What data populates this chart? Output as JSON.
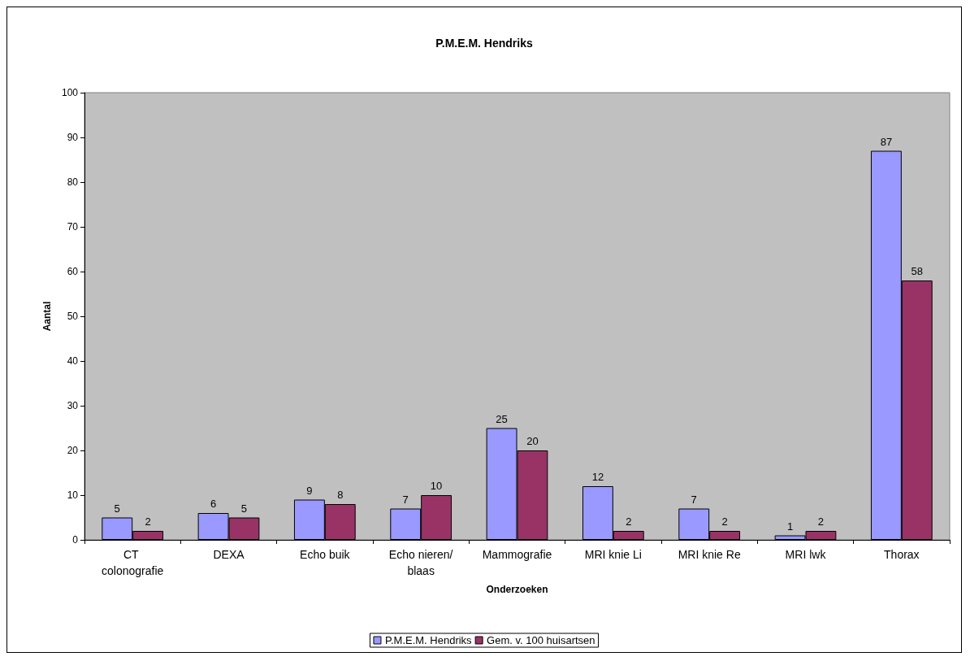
{
  "chart_data": {
    "type": "bar",
    "title": "P.M.E.M. Hendriks",
    "xlabel": "Onderzoeken",
    "ylabel": "Aantal",
    "categories": [
      "CT colonografie",
      "DEXA",
      "Echo buik",
      "Echo nieren/blaas",
      "Mammografie",
      "MRI knie Li",
      "MRI knie Re",
      "MRI lwk",
      "Thorax"
    ],
    "series": [
      {
        "name": "P.M.E.M. Hendriks",
        "color": "#9999ff",
        "values": [
          5,
          6,
          9,
          7,
          25,
          12,
          7,
          1,
          87
        ]
      },
      {
        "name": "Gem. v. 100 huisartsen",
        "color": "#993366",
        "values": [
          2,
          5,
          8,
          10,
          20,
          2,
          2,
          2,
          58
        ]
      }
    ],
    "ylim": [
      0,
      100
    ],
    "yticks": [
      0,
      10,
      20,
      30,
      40,
      50,
      60,
      70,
      80,
      90,
      100
    ],
    "data_labels": true,
    "legend": "bottom"
  }
}
